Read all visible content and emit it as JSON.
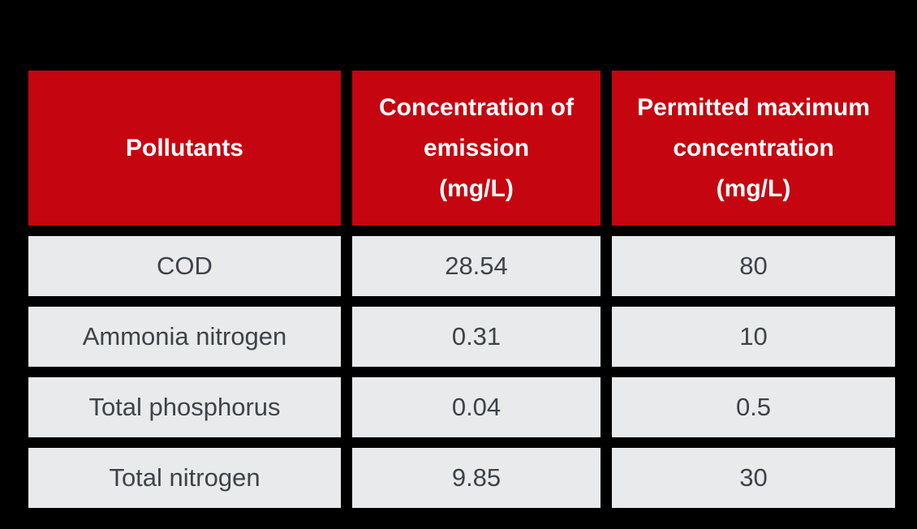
{
  "colors": {
    "background": "#000000",
    "header_bg": "#c5050f",
    "header_text": "#ffffff",
    "cell_bg": "#e9eaeb",
    "cell_text": "#3e434a"
  },
  "chart_data": {
    "type": "table",
    "title": "",
    "columns": [
      "Pollutants",
      "Concentration of emission (mg/L)",
      "Permitted maximum concentration (mg/L)"
    ],
    "rows": [
      [
        "COD",
        "28.54",
        "80"
      ],
      [
        "Ammonia nitrogen",
        "0.31",
        "10"
      ],
      [
        "Total phosphorus",
        "0.04",
        "0.5"
      ],
      [
        "Total nitrogen",
        "9.85",
        "30"
      ]
    ]
  },
  "table": {
    "headers": {
      "pollutants": "Pollutants",
      "emission": "Concentration of\nemission\n(mg/L)",
      "max": "Permitted maximum\nconcentration\n(mg/L)"
    },
    "rows": [
      {
        "pollutant": "COD",
        "emission": "28.54",
        "max": "80"
      },
      {
        "pollutant": "Ammonia nitrogen",
        "emission": "0.31",
        "max": "10"
      },
      {
        "pollutant": "Total phosphorus",
        "emission": "0.04",
        "max": "0.5"
      },
      {
        "pollutant": "Total nitrogen",
        "emission": "9.85",
        "max": "30"
      }
    ]
  }
}
